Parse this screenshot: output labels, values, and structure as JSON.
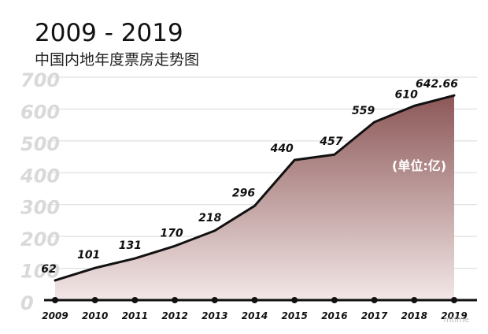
{
  "chart_data": {
    "type": "area",
    "title": "2009 - 2019",
    "subtitle": "中国内地年度票房走势图",
    "categories": [
      "2009",
      "2010",
      "2011",
      "2012",
      "2013",
      "2014",
      "2015",
      "2016",
      "2017",
      "2018",
      "2019"
    ],
    "x_tick_labels": [
      "2009",
      "2010",
      "2011",
      "2012",
      "2013",
      "2014",
      "2015",
      "2016",
      "2017",
      "2018",
      "2019"
    ],
    "values": [
      62,
      101,
      131,
      170,
      218,
      296,
      440,
      457,
      559,
      610,
      642.66
    ],
    "data_labels": [
      "62",
      "101",
      "131",
      "170",
      "218",
      "296",
      "440",
      "457",
      "559",
      "610",
      "642.66"
    ],
    "y_tick_labels": [
      "0",
      "100",
      "200",
      "300",
      "400",
      "500",
      "600",
      "700"
    ],
    "ylim": [
      0,
      700
    ],
    "grid": true,
    "unit_annotation": "(单位:亿)",
    "watermark": "mtime",
    "colors": {
      "fill_top": "#8c5757",
      "fill_bottom": "#f3e7e7",
      "line": "#111111",
      "grid": "#d9d9d9",
      "ytick": "#d9d9d9",
      "axis": "#111111"
    }
  }
}
